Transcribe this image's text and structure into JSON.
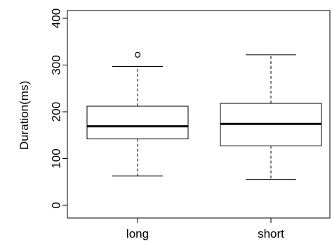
{
  "chart_data": {
    "type": "boxplot",
    "ylabel": "Duration(ms)",
    "ylim": [
      0,
      400
    ],
    "yticks": [
      "0",
      "100",
      "200",
      "300",
      "400"
    ],
    "categories": [
      "long",
      "short"
    ],
    "boxes": [
      {
        "label": "long",
        "whisker_low": 63,
        "q1": 142,
        "median": 169,
        "q3": 212,
        "whisker_high": 297,
        "outliers": [
          322
        ]
      },
      {
        "label": "short",
        "whisker_low": 55,
        "q1": 127,
        "median": 174,
        "q3": 218,
        "whisker_high": 322,
        "outliers": []
      }
    ],
    "colors": {
      "box": "#000000",
      "background": "#ffffff"
    }
  }
}
